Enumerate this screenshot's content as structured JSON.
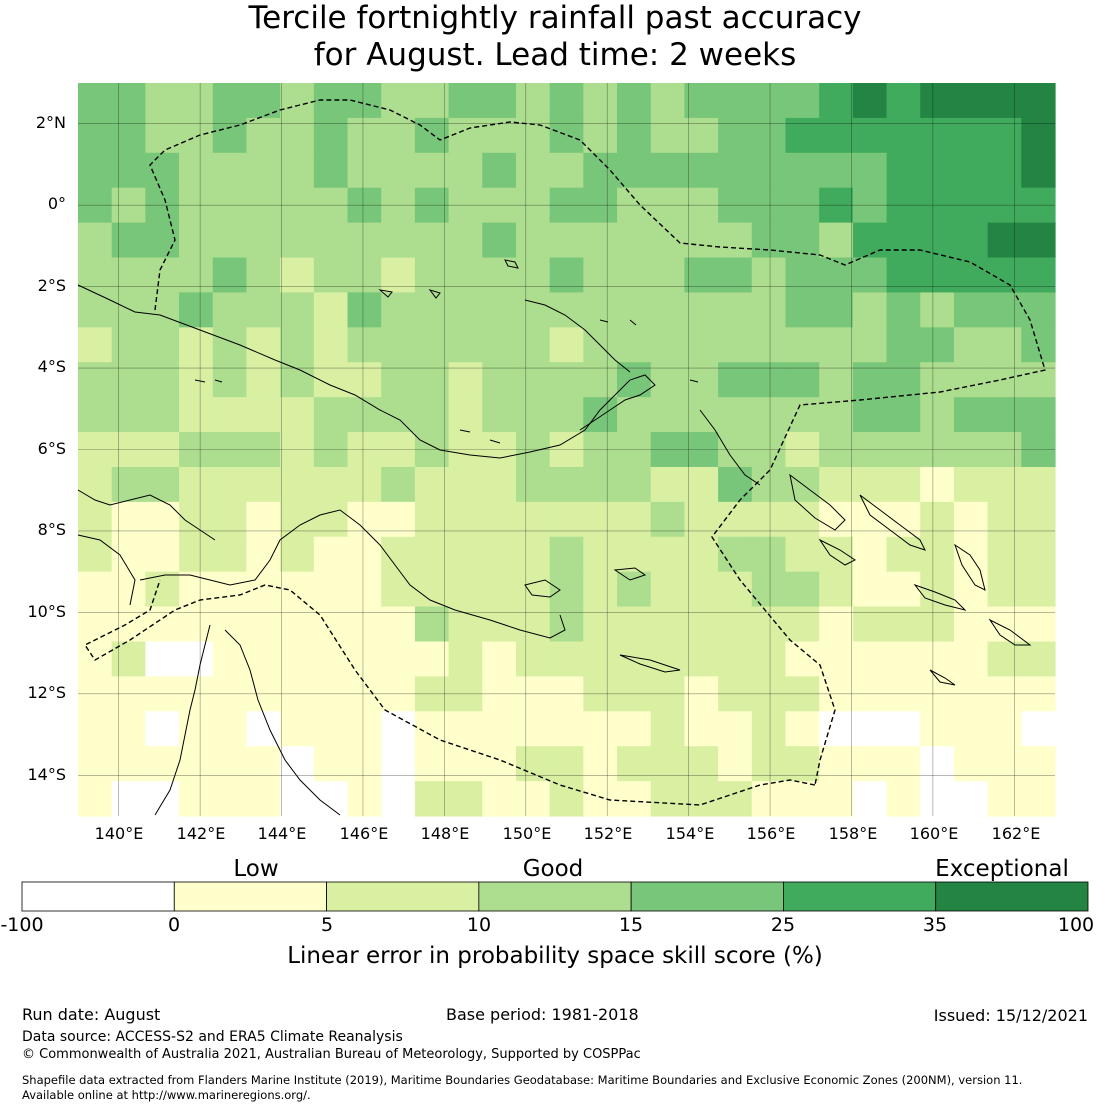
{
  "title": {
    "line1": "Tercile fortnightly rainfall past accuracy",
    "line2": "for August. Lead time: 2 weeks"
  },
  "map": {
    "lat_labels": [
      "2°N",
      "0°",
      "2°S",
      "4°S",
      "6°S",
      "8°S",
      "10°S",
      "12°S",
      "14°S"
    ],
    "lon_labels": [
      "140°E",
      "142°E",
      "144°E",
      "146°E",
      "148°E",
      "150°E",
      "152°E",
      "154°E",
      "156°E",
      "158°E",
      "160°E",
      "162°E"
    ],
    "lon_range": [
      139.0,
      163.0
    ],
    "lat_range": [
      -15.0,
      3.0
    ],
    "grid": true
  },
  "colorbar": {
    "category_labels": {
      "low": "Low",
      "good": "Good",
      "exceptional": "Exceptional"
    },
    "tick_labels": [
      "-100",
      "0",
      "5",
      "10",
      "15",
      "25",
      "35",
      "100"
    ],
    "colors": [
      "#ffffff",
      "#ffffcc",
      "#d9f0a3",
      "#addd8e",
      "#78c679",
      "#41ab5d",
      "#238443"
    ],
    "title": "Linear error in probability space skill score (%)"
  },
  "footer": {
    "run_date": "Run date: August",
    "base_period": "Base period: 1981-2018",
    "issued": "Issued: 15/12/2021",
    "data_source": "Data source: ACCESS-S2 and ERA5 Climate Reanalysis",
    "copyright": "© Commonwealth of Australia 2021, Australian Bureau of Meteorology, Supported by COSPPac",
    "shapefile_line1": "Shapefile data extracted from Flanders Marine Institute (2019), Maritime Boundaries Geodatabase: Maritime Boundaries and Exclusive Economic Zones (200NM), version 11.",
    "shapefile_line2": "Available online at http://www.marineregions.org/."
  }
}
